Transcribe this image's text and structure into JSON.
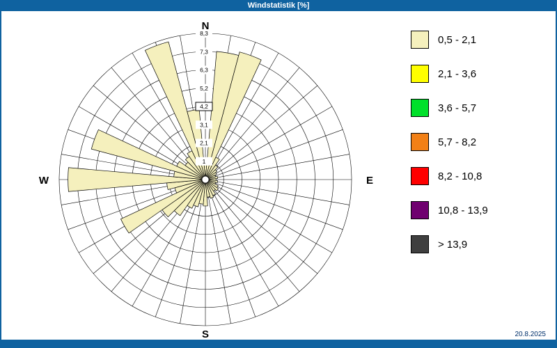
{
  "window": {
    "title": "Windstatistik [%]",
    "date": "20.8.2025",
    "frame_color": "#0f62a0"
  },
  "compass": {
    "north": "N",
    "east": "E",
    "south": "S",
    "west": "W"
  },
  "legend": {
    "items": [
      {
        "label": "0,5 - 2,1",
        "color": "#f5f0bd"
      },
      {
        "label": "2,1 - 3,6",
        "color": "#ffff00"
      },
      {
        "label": "3,6 - 5,7",
        "color": "#00e02a"
      },
      {
        "label": "5,7 - 8,2",
        "color": "#f28016"
      },
      {
        "label": "8,2 - 10,8",
        "color": "#ff0000"
      },
      {
        "label": "10,8 - 13,9",
        "color": "#6f006f"
      },
      {
        "label": "> 13,9",
        "color": "#3f3f3f"
      }
    ]
  },
  "chart_data": {
    "type": "windrose",
    "title": "Windstatistik [%]",
    "units": "%",
    "sector_width_deg": 10,
    "max_value": 8.3,
    "ring_values": [
      1.0,
      2.1,
      3.1,
      4.2,
      5.2,
      6.3,
      7.3,
      8.3
    ],
    "ring_labels": [
      "1",
      "2,1",
      "3,1",
      "4,2",
      "5,2",
      "6,3",
      "7,3",
      "8,3"
    ],
    "highlighted_ring_index": 3,
    "grid": true,
    "legend_position": "right",
    "petal_color": "#f5f0bd",
    "petal_speed_class": "0,5 - 2,1",
    "directions_deg": [
      0,
      10,
      20,
      30,
      40,
      50,
      60,
      70,
      80,
      90,
      100,
      110,
      120,
      130,
      140,
      150,
      160,
      170,
      180,
      190,
      200,
      210,
      220,
      230,
      240,
      250,
      260,
      270,
      280,
      290,
      300,
      310,
      320,
      330,
      340,
      350
    ],
    "values": [
      1.0,
      7.3,
      7.5,
      1.4,
      1.0,
      0.8,
      0.7,
      0.6,
      0.7,
      0.6,
      0.7,
      0.6,
      0.8,
      0.9,
      0.8,
      1.0,
      1.1,
      1.0,
      1.5,
      1.4,
      1.6,
      1.8,
      2.5,
      3.0,
      5.3,
      1.8,
      2.2,
      7.8,
      1.8,
      6.7,
      1.8,
      1.4,
      1.6,
      1.8,
      8.1,
      4.0
    ]
  }
}
